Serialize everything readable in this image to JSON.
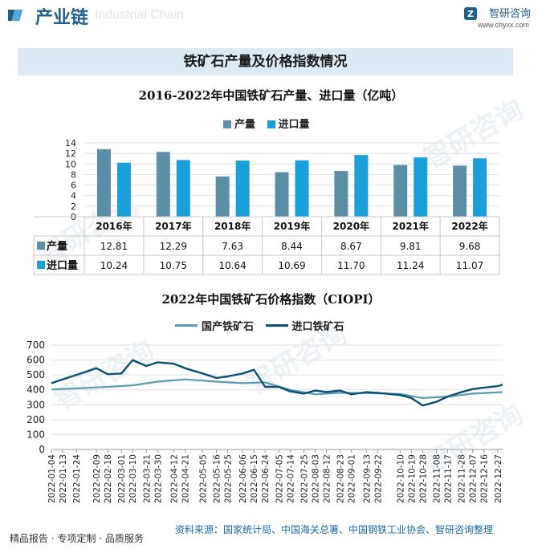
{
  "header": {
    "section_title": "产业链",
    "section_watermark": "Industrial Chain",
    "brand_name": "智研咨询",
    "brand_url": "www.chyxx.com"
  },
  "title_band": "铁矿石产量及价格指数情况",
  "watermark_text": "智研咨询",
  "chart_data": [
    {
      "type": "bar",
      "title": "2016-2022年中国铁矿石产量、进口量（亿吨）",
      "categories": [
        "2016年",
        "2017年",
        "2018年",
        "2019年",
        "2020年",
        "2021年",
        "2022年"
      ],
      "series": [
        {
          "name": "产量",
          "color": "#5b8fa8",
          "values": [
            12.81,
            12.29,
            7.63,
            8.44,
            8.67,
            9.81,
            9.68
          ],
          "labels": [
            "12.81",
            "12.29",
            "7.63",
            "8.44",
            "8.67",
            "9.81",
            "9.68"
          ]
        },
        {
          "name": "进口量",
          "color": "#1aa0d8",
          "values": [
            10.24,
            10.75,
            10.64,
            10.69,
            11.7,
            11.24,
            11.07
          ],
          "labels": [
            "10.24",
            "10.75",
            "10.64",
            "10.69",
            "11.70",
            "11.24",
            "11.07"
          ]
        }
      ],
      "ylim": [
        0,
        14
      ],
      "yticks": [
        "0",
        "2",
        "4",
        "6",
        "8",
        "10",
        "12",
        "14"
      ],
      "grid": true,
      "legend": "top"
    },
    {
      "type": "line",
      "title": "2022年中国铁矿石价格指数（CIOPI）",
      "x_start": "2022-01-04",
      "x_end": "2022-12-31",
      "xticks": [
        "2022-01-04",
        "2022-01-13",
        "2022-01-24",
        "2022-02-09",
        "2022-02-18",
        "2022-03-01",
        "2022-03-10",
        "2022-03-21",
        "2022-03-30",
        "2022-04-12",
        "2022-04-21",
        "2022-05-05",
        "2022-05-16",
        "2022-05-25",
        "2022-06-06",
        "2022-06-15",
        "2022-06-24",
        "2022-07-05",
        "2022-07-14",
        "2022-07-25",
        "2022-08-03",
        "2022-08-12",
        "2022-08-23",
        "2022-09-01",
        "2022-09-13",
        "2022-09-22",
        "2022-10-10",
        "2022-10-19",
        "2022-10-28",
        "2022-11-08",
        "2022-11-17",
        "2022-11-28",
        "2022-12-07",
        "2022-12-16",
        "2022-12-27"
      ],
      "ylim": [
        0,
        700
      ],
      "yticks": [
        "0",
        "100",
        "200",
        "300",
        "400",
        "500",
        "600",
        "700"
      ],
      "grid": true,
      "legend": "top",
      "series": [
        {
          "name": "国产铁矿石",
          "color": "#5b9bb0",
          "x": [
            "2022-01-04",
            "2022-01-24",
            "2022-02-18",
            "2022-03-10",
            "2022-03-30",
            "2022-04-21",
            "2022-05-16",
            "2022-06-06",
            "2022-06-24",
            "2022-07-14",
            "2022-08-03",
            "2022-08-23",
            "2022-09-13",
            "2022-10-10",
            "2022-10-28",
            "2022-11-17",
            "2022-12-07",
            "2022-12-31"
          ],
          "y": [
            402,
            410,
            420,
            430,
            455,
            470,
            455,
            445,
            450,
            400,
            370,
            380,
            378,
            372,
            345,
            355,
            375,
            385
          ]
        },
        {
          "name": "进口铁矿石",
          "color": "#0d4f73",
          "x": [
            "2022-01-04",
            "2022-01-13",
            "2022-01-24",
            "2022-02-09",
            "2022-02-18",
            "2022-03-01",
            "2022-03-10",
            "2022-03-21",
            "2022-03-30",
            "2022-04-12",
            "2022-04-21",
            "2022-05-05",
            "2022-05-16",
            "2022-05-25",
            "2022-06-06",
            "2022-06-15",
            "2022-06-24",
            "2022-07-05",
            "2022-07-14",
            "2022-07-25",
            "2022-08-03",
            "2022-08-12",
            "2022-08-23",
            "2022-09-01",
            "2022-09-13",
            "2022-09-22",
            "2022-10-10",
            "2022-10-19",
            "2022-10-28",
            "2022-11-08",
            "2022-11-17",
            "2022-11-28",
            "2022-12-07",
            "2022-12-16",
            "2022-12-27",
            "2022-12-31"
          ],
          "y": [
            445,
            470,
            500,
            545,
            505,
            510,
            600,
            560,
            585,
            575,
            545,
            510,
            480,
            490,
            510,
            535,
            420,
            420,
            390,
            375,
            395,
            385,
            395,
            370,
            385,
            380,
            365,
            345,
            295,
            320,
            355,
            385,
            405,
            415,
            425,
            435
          ]
        }
      ]
    }
  ],
  "footer": {
    "left": "精品报告 · 专项定制 · 品质服务",
    "right": "资料来源：国家统计局、中国海关总署、中国钢铁工业协会、智研咨询整理"
  }
}
